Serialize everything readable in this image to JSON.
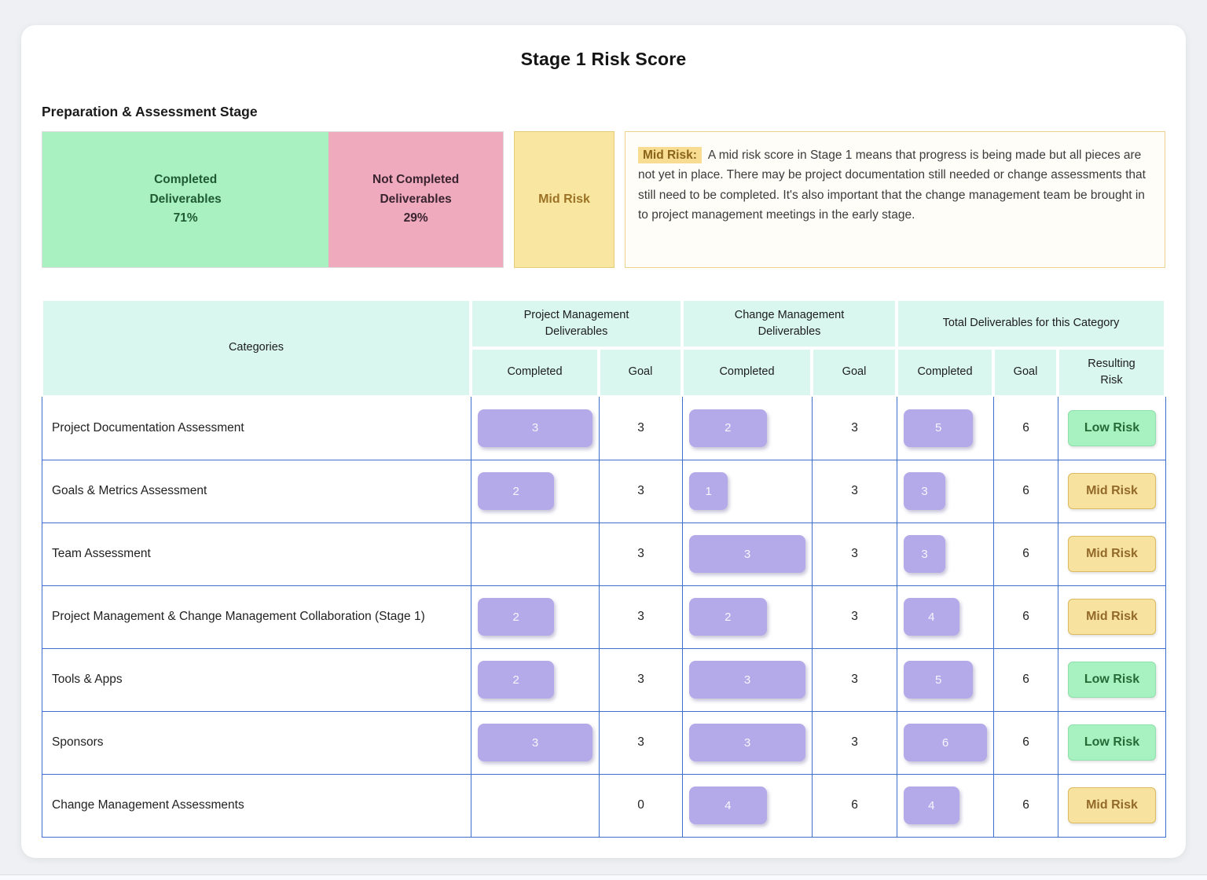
{
  "title": "Stage 1 Risk Score",
  "section": {
    "heading": "Preparation & Assessment Stage"
  },
  "summary": {
    "completed": {
      "label_line1": "Completed",
      "label_line2": "Deliverables",
      "percent": "71%",
      "percent_value": 71,
      "color": "#a9f1c1"
    },
    "not_completed": {
      "label_line1": "Not Completed",
      "label_line2": "Deliverables",
      "percent": "29%",
      "percent_value": 29,
      "color": "#efaabe"
    },
    "risk_badge": {
      "label": "Mid Risk",
      "color": "#f9e7a1"
    },
    "risk_note": {
      "label": "Mid Risk:",
      "text": "A mid risk score in Stage 1 means that progress is being made but all pieces are not yet in place. There may be project documentation still needed or change assessments that still need to be completed. It's also important that the change management team be brought in to project management meetings in the early stage."
    }
  },
  "table": {
    "header": {
      "categories": "Categories",
      "group_pm": "Project Management Deliverables",
      "group_cm": "Change Management Deliverables",
      "group_total": "Total Deliverables for this Category",
      "sub_completed": "Completed",
      "sub_goal": "Goal",
      "sub_resulting_risk": "Resulting Risk"
    },
    "rows": [
      {
        "category": "Project Documentation Assessment",
        "pm_completed": 3,
        "pm_goal": 3,
        "cm_completed": 2,
        "cm_goal": 3,
        "total_completed": 5,
        "total_goal": 6,
        "risk": "Low Risk",
        "risk_level": "low"
      },
      {
        "category": "Goals & Metrics Assessment",
        "pm_completed": 2,
        "pm_goal": 3,
        "cm_completed": 1,
        "cm_goal": 3,
        "total_completed": 3,
        "total_goal": 6,
        "risk": "Mid Risk",
        "risk_level": "mid"
      },
      {
        "category": "Team Assessment",
        "pm_completed": null,
        "pm_goal": 3,
        "cm_completed": 3,
        "cm_goal": 3,
        "total_completed": 3,
        "total_goal": 6,
        "risk": "Mid Risk",
        "risk_level": "mid"
      },
      {
        "category": "Project Management & Change Management Collaboration (Stage 1)",
        "pm_completed": 2,
        "pm_goal": 3,
        "cm_completed": 2,
        "cm_goal": 3,
        "total_completed": 4,
        "total_goal": 6,
        "risk": "Mid Risk",
        "risk_level": "mid"
      },
      {
        "category": "Tools & Apps",
        "pm_completed": 2,
        "pm_goal": 3,
        "cm_completed": 3,
        "cm_goal": 3,
        "total_completed": 5,
        "total_goal": 6,
        "risk": "Low Risk",
        "risk_level": "low"
      },
      {
        "category": "Sponsors",
        "pm_completed": 3,
        "pm_goal": 3,
        "cm_completed": 3,
        "cm_goal": 3,
        "total_completed": 6,
        "total_goal": 6,
        "risk": "Low Risk",
        "risk_level": "low"
      },
      {
        "category": "Change Management Assessments",
        "pm_completed": null,
        "pm_goal": 0,
        "cm_completed": 4,
        "cm_goal": 6,
        "total_completed": 4,
        "total_goal": 6,
        "risk": "Mid Risk",
        "risk_level": "mid"
      }
    ]
  },
  "colors": {
    "accent_border": "#3d6fd0",
    "header_bg": "#d9f6ef",
    "pill": "#b4a9e9",
    "completed_bg": "#a9f1c1",
    "not_completed_bg": "#efaabe",
    "risk_box_bg": "#f9e7a1",
    "note_highlight": "#f7dc92",
    "low_risk_bg": "#a8f1c1",
    "low_risk_text": "#256b38",
    "mid_risk_bg": "#f7e39f",
    "mid_risk_text": "#93692a"
  }
}
